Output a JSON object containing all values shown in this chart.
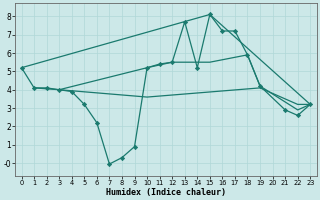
{
  "xlabel": "Humidex (Indice chaleur)",
  "background_color": "#cce8e8",
  "line_color": "#1a7a6e",
  "xlim": [
    -0.5,
    23.5
  ],
  "ylim": [
    -0.7,
    8.7
  ],
  "xticks": [
    0,
    1,
    2,
    3,
    4,
    5,
    6,
    7,
    8,
    9,
    10,
    11,
    12,
    13,
    14,
    15,
    16,
    17,
    18,
    19,
    20,
    21,
    22,
    23
  ],
  "yticks": [
    0,
    1,
    2,
    3,
    4,
    5,
    6,
    7,
    8
  ],
  "series": [
    {
      "x": [
        0,
        1,
        2,
        3,
        4,
        5,
        6,
        7,
        8,
        9,
        10,
        11,
        12,
        13,
        14,
        15,
        16,
        17,
        18,
        19,
        21,
        22,
        23
      ],
      "y": [
        5.2,
        4.1,
        4.1,
        4.0,
        3.9,
        3.2,
        2.2,
        -0.05,
        0.3,
        0.9,
        5.2,
        5.4,
        5.5,
        7.7,
        5.2,
        8.1,
        7.2,
        7.2,
        5.9,
        4.2,
        2.9,
        2.6,
        3.2
      ]
    },
    {
      "x": [
        0,
        15,
        23
      ],
      "y": [
        5.2,
        8.1,
        3.2
      ]
    },
    {
      "x": [
        3,
        10,
        12,
        15,
        18,
        19,
        22,
        23
      ],
      "y": [
        4.0,
        5.2,
        5.5,
        5.5,
        5.9,
        4.2,
        2.9,
        3.2
      ]
    },
    {
      "x": [
        1,
        3,
        10,
        19,
        22,
        23
      ],
      "y": [
        4.1,
        4.0,
        3.6,
        4.1,
        3.2,
        3.2
      ]
    }
  ]
}
